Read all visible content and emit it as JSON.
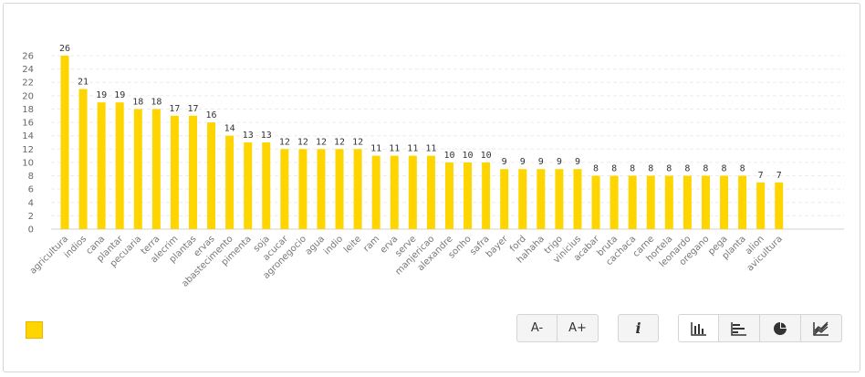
{
  "chart_data": {
    "type": "bar",
    "categories": [
      "agricultura",
      "indios",
      "cana",
      "plantar",
      "pecuaria",
      "terra",
      "alecrim",
      "plantas",
      "ervas",
      "abastecimento",
      "pimenta",
      "soja",
      "acucar",
      "agronegocio",
      "agua",
      "indio",
      "leite",
      "ram",
      "erva",
      "serve",
      "manjericao",
      "alexandre",
      "sonho",
      "safra",
      "bayer",
      "ford",
      "hahaha",
      "trigo",
      "vinicius",
      "acabar",
      "bruta",
      "cachaca",
      "carne",
      "hortela",
      "leonardo",
      "oregano",
      "pega",
      "planta",
      "alion",
      "avicultura"
    ],
    "values": [
      26,
      21,
      19,
      19,
      18,
      18,
      17,
      17,
      16,
      14,
      13,
      13,
      12,
      12,
      12,
      12,
      12,
      11,
      11,
      11,
      11,
      10,
      10,
      10,
      9,
      9,
      9,
      9,
      9,
      8,
      8,
      8,
      8,
      8,
      8,
      8,
      8,
      8,
      7,
      7
    ],
    "yticks": [
      0,
      2,
      4,
      6,
      8,
      10,
      12,
      14,
      16,
      18,
      20,
      22,
      24,
      26
    ],
    "ylim": [
      0,
      26
    ],
    "grid": true,
    "color": "#ffd500",
    "legend": "bottom-left"
  },
  "controls": {
    "font_decrease": "A-",
    "font_increase": "A+",
    "info": "i"
  },
  "icons": [
    "bar-chart-icon",
    "horizontal-bar-icon",
    "pie-chart-icon",
    "area-chart-icon"
  ]
}
